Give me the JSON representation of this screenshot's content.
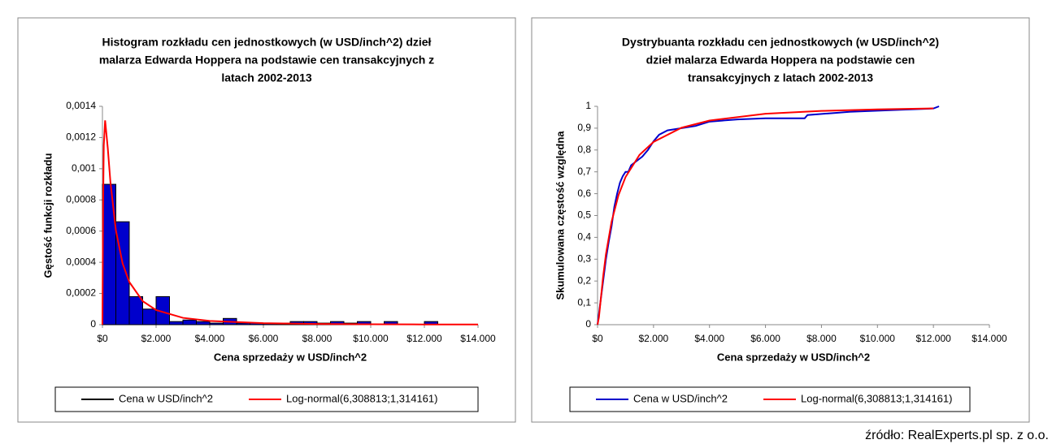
{
  "chart_data": [
    {
      "type": "histogram",
      "title": [
        "Histogram rozkładu cen jednostkowych (w USD/inch^2) dzieł",
        "malarza Edwarda Hoppera na podstawie cen transakcyjnych z",
        "latach 2002-2013"
      ],
      "xlabel": "Cena sprzedaży w USD/inch^2",
      "ylabel": "Gęstość funkcji rozkładu",
      "name": "Cena w USD/inch^2",
      "color": "#0000cc",
      "edgecolor": "#000000",
      "bins": [
        0,
        500,
        1000,
        1500,
        2000,
        2500,
        3000,
        3500,
        4000,
        4500,
        5000,
        5500,
        6000,
        6500,
        7000,
        7500,
        8000,
        8500,
        9000,
        9500,
        10000,
        10500,
        11000,
        11500,
        12000,
        12500,
        13000,
        13500,
        14000
      ],
      "values": [
        0.0009,
        0.00066,
        0.00018,
        0.0001,
        0.00018,
        2e-05,
        3e-05,
        2e-05,
        1e-05,
        4e-05,
        1e-05,
        1e-05,
        1e-05,
        1e-05,
        2e-05,
        2e-05,
        1e-05,
        2e-05,
        1e-05,
        2e-05,
        0,
        2e-05,
        0,
        0,
        2e-05,
        0,
        0,
        0
      ],
      "curve": {
        "name": "Log-normal(6,308813;1,314161)",
        "color": "#ff0000",
        "x": [
          0,
          25,
          50,
          100,
          200,
          300,
          500,
          750,
          1000,
          1500,
          2000,
          3000,
          4000,
          6000,
          8000,
          10000,
          12000,
          14000
        ],
        "values": [
          0,
          0.000765,
          0.00115,
          0.00131,
          0.00113,
          0.00091,
          0.000606,
          0.000394,
          0.000274,
          0.000151,
          9.36e-05,
          4.39e-05,
          2.43e-05,
          9.7e-06,
          4.8e-06,
          2.7e-06,
          1.6e-06,
          1e-06
        ]
      },
      "xlim": [
        0,
        14000
      ],
      "ylim": [
        0,
        0.0014
      ],
      "xticks": [
        {
          "value": 0,
          "label": "$0"
        },
        {
          "value": 2000,
          "label": "$2.000"
        },
        {
          "value": 4000,
          "label": "$4.000"
        },
        {
          "value": 6000,
          "label": "$6.000"
        },
        {
          "value": 8000,
          "label": "$8.000"
        },
        {
          "value": 10000,
          "label": "$10.000"
        },
        {
          "value": 12000,
          "label": "$12.000"
        },
        {
          "value": 14000,
          "label": "$14.000"
        }
      ],
      "yticks": [
        0,
        {
          "value": 0.0002,
          "label": "0,0002"
        },
        {
          "value": 0.0004,
          "label": "0,0004"
        },
        {
          "value": 0.0006,
          "label": "0,0006"
        },
        {
          "value": 0.0008,
          "label": "0,0008"
        },
        {
          "value": 0.001,
          "label": "0,001"
        },
        {
          "value": 0.0012,
          "label": "0,0012"
        },
        {
          "value": 0.0014,
          "label": "0,0014"
        }
      ],
      "legend": "bottom"
    },
    {
      "type": "line",
      "title": [
        "Dystrybuanta rozkładu cen jednostkowych (w USD/inch^2)",
        "dzieł malarza Edwarda Hoppera na podstawie cen",
        "transakcyjnych z latach 2002-2013"
      ],
      "xlabel": "Cena sprzedaży w USD/inch^2",
      "ylabel": "Skumulowana częstość względna",
      "series": [
        {
          "name": "Cena w USD/inch^2",
          "color": "#0000cc",
          "x": [
            0,
            200,
            300,
            400,
            500,
            600,
            700,
            800,
            900,
            1000,
            1100,
            1200,
            1400,
            1600,
            1800,
            2000,
            2200,
            2500,
            3000,
            3500,
            4000,
            5000,
            6000,
            7000,
            7400,
            7500,
            8500,
            9000,
            10000,
            11000,
            12000,
            12200
          ],
          "values": [
            0,
            0.2,
            0.3,
            0.38,
            0.45,
            0.54,
            0.6,
            0.65,
            0.68,
            0.7,
            0.7,
            0.73,
            0.75,
            0.77,
            0.8,
            0.84,
            0.87,
            0.89,
            0.9,
            0.91,
            0.93,
            0.94,
            0.945,
            0.945,
            0.945,
            0.96,
            0.97,
            0.975,
            0.98,
            0.985,
            0.99,
            1
          ]
        },
        {
          "name": "Log-normal(6,308813;1,314161)",
          "color": "#ff0000",
          "x": [
            0,
            50,
            100,
            200,
            300,
            500,
            750,
            1000,
            1500,
            2000,
            3000,
            4000,
            6000,
            8000,
            10000,
            12000
          ],
          "values": [
            0,
            0.034,
            0.097,
            0.221,
            0.323,
            0.471,
            0.594,
            0.676,
            0.778,
            0.837,
            0.902,
            0.935,
            0.966,
            0.979,
            0.986,
            0.9905
          ]
        }
      ],
      "xlim": [
        0,
        14000
      ],
      "ylim": [
        0,
        1
      ],
      "xticks": [
        {
          "value": 0,
          "label": "$0"
        },
        {
          "value": 2000,
          "label": "$2.000"
        },
        {
          "value": 4000,
          "label": "$4.000"
        },
        {
          "value": 6000,
          "label": "$6.000"
        },
        {
          "value": 8000,
          "label": "$8.000"
        },
        {
          "value": 10000,
          "label": "$10.000"
        },
        {
          "value": 12000,
          "label": "$12.000"
        },
        {
          "value": 14000,
          "label": "$14.000"
        }
      ],
      "yticks": [
        0,
        {
          "value": 0.1,
          "label": "0,1"
        },
        {
          "value": 0.2,
          "label": "0,2"
        },
        {
          "value": 0.3,
          "label": "0,3"
        },
        {
          "value": 0.4,
          "label": "0,4"
        },
        {
          "value": 0.5,
          "label": "0,5"
        },
        {
          "value": 0.6,
          "label": "0,6"
        },
        {
          "value": 0.7,
          "label": "0,7"
        },
        {
          "value": 0.8,
          "label": "0,8"
        },
        {
          "value": 0.9,
          "label": "0,9"
        },
        1
      ],
      "legend": "bottom"
    }
  ],
  "source": "źródło: RealExperts.pl sp. z o.o."
}
